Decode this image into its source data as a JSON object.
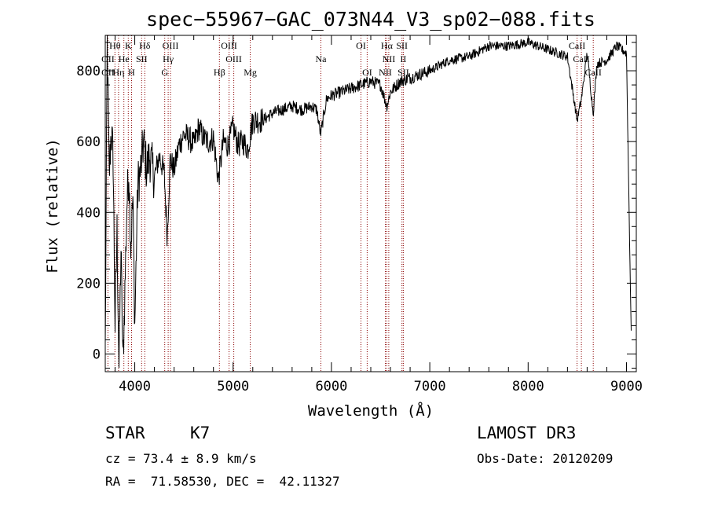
{
  "chart_data": {
    "type": "line",
    "title": "spec−55967−GAC_073N44_V3_sp02−088.fits",
    "xlabel": "Wavelength (Å)",
    "ylabel": "Flux (relative)",
    "xlim": [
      3700,
      9100
    ],
    "ylim": [
      -50,
      900
    ],
    "xticks": [
      4000,
      5000,
      6000,
      7000,
      8000,
      9000
    ],
    "yticks": [
      0,
      200,
      400,
      600,
      800
    ],
    "series": [
      {
        "name": "spectrum",
        "x": [
          3700,
          3720,
          3740,
          3760,
          3780,
          3800,
          3820,
          3840,
          3860,
          3880,
          3900,
          3920,
          3940,
          3960,
          3980,
          4000,
          4030,
          4060,
          4090,
          4120,
          4150,
          4200,
          4250,
          4300,
          4330,
          4360,
          4400,
          4450,
          4500,
          4550,
          4600,
          4650,
          4700,
          4750,
          4800,
          4850,
          4900,
          4950,
          5000,
          5050,
          5100,
          5150,
          5200,
          5300,
          5400,
          5500,
          5600,
          5700,
          5800,
          5850,
          5890,
          5950,
          6000,
          6100,
          6200,
          6300,
          6400,
          6500,
          6563,
          6600,
          6700,
          6800,
          6900,
          7000,
          7200,
          7400,
          7600,
          7800,
          8000,
          8200,
          8400,
          8498,
          8542,
          8600,
          8662,
          8700,
          8800,
          8900,
          9000,
          9050
        ],
        "y": [
          10,
          880,
          500,
          630,
          560,
          80,
          350,
          -40,
          300,
          -30,
          180,
          420,
          520,
          300,
          440,
          80,
          480,
          520,
          600,
          520,
          560,
          500,
          560,
          510,
          330,
          550,
          520,
          590,
          620,
          610,
          590,
          640,
          610,
          600,
          610,
          490,
          600,
          590,
          640,
          590,
          600,
          580,
          660,
          660,
          680,
          690,
          700,
          690,
          700,
          690,
          620,
          720,
          730,
          740,
          750,
          760,
          770,
          760,
          700,
          740,
          770,
          780,
          790,
          800,
          830,
          840,
          870,
          870,
          880,
          860,
          840,
          660,
          720,
          850,
          680,
          820,
          830,
          870,
          850,
          20
        ]
      }
    ],
    "spectral_lines": [
      {
        "label": "Hθ",
        "row": 0,
        "wave": 3798
      },
      {
        "label": "K",
        "row": 0,
        "wave": 3934
      },
      {
        "label": "Hδ",
        "row": 0,
        "wave": 4102
      },
      {
        "label": "OIII",
        "row": 0,
        "wave": 4363
      },
      {
        "label": "OIII",
        "row": 0,
        "wave": 4959
      },
      {
        "label": "OI",
        "row": 0,
        "wave": 6300
      },
      {
        "label": "Hα",
        "row": 0,
        "wave": 6563
      },
      {
        "label": "SII",
        "row": 0,
        "wave": 6717
      },
      {
        "label": "CaII",
        "row": 0,
        "wave": 8498
      },
      {
        "label": "OII",
        "row": 1,
        "wave": 3727
      },
      {
        "label": "He",
        "row": 1,
        "wave": 3889
      },
      {
        "label": "SII",
        "row": 1,
        "wave": 4070
      },
      {
        "label": "Hγ",
        "row": 1,
        "wave": 4340
      },
      {
        "label": "OIII",
        "row": 1,
        "wave": 5007
      },
      {
        "label": "Na",
        "row": 1,
        "wave": 5893
      },
      {
        "label": "NII",
        "row": 1,
        "wave": 6583
      },
      {
        "label": "II",
        "row": 1,
        "wave": 6731
      },
      {
        "label": "CaII",
        "row": 1,
        "wave": 8542
      },
      {
        "label": "OII",
        "row": 2,
        "wave": 3727
      },
      {
        "label": "Hη",
        "row": 2,
        "wave": 3835
      },
      {
        "label": "H",
        "row": 2,
        "wave": 3968
      },
      {
        "label": "G",
        "row": 2,
        "wave": 4305
      },
      {
        "label": "Hβ",
        "row": 2,
        "wave": 4861
      },
      {
        "label": "Mg",
        "row": 2,
        "wave": 5175
      },
      {
        "label": "OI",
        "row": 2,
        "wave": 6363
      },
      {
        "label": "NII",
        "row": 2,
        "wave": 6548
      },
      {
        "label": "SII",
        "row": 2,
        "wave": 6731
      },
      {
        "label": "CaII",
        "row": 2,
        "wave": 8662
      }
    ]
  },
  "info": {
    "class": "STAR",
    "subclass": "K7",
    "survey": "LAMOST DR3",
    "cz": "cz = 73.4 ± 8.9 km/s",
    "obs_date": "Obs-Date: 20120209",
    "radec": "RA =  71.58530, DEC =  42.11327"
  },
  "colors": {
    "line": "#000000",
    "marker": "#8b0000"
  }
}
